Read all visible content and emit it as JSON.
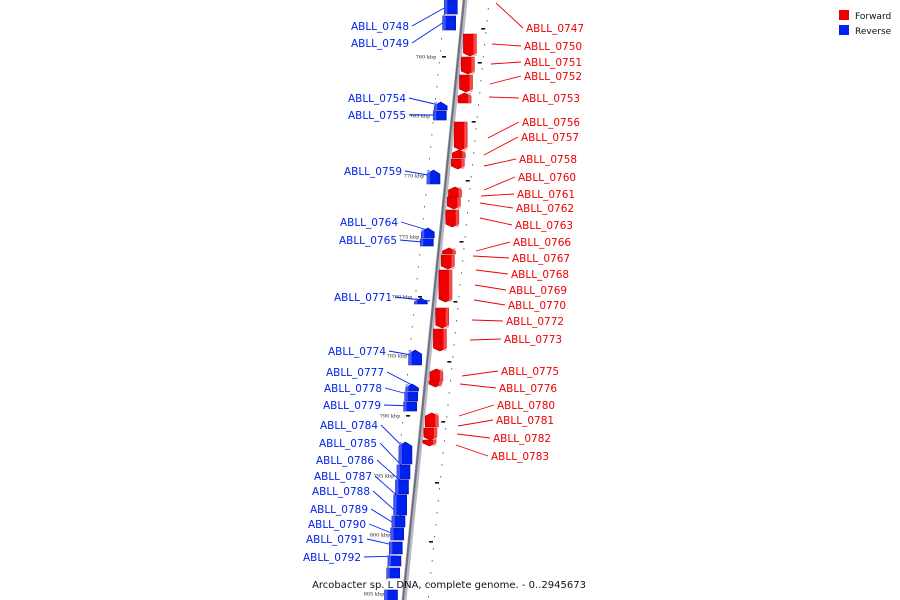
{
  "caption": "Arcobacter sp. L DNA, complete genome. - 0..2945673",
  "legend": [
    {
      "label": "Forward",
      "color": "#ee0000"
    },
    {
      "label": "Reverse",
      "color": "#0022ee"
    }
  ],
  "tick_labels": [
    "760 kbp",
    "765 kbp",
    "770 kbp",
    "775 kbp",
    "780 kbp",
    "785 kbp",
    "790 kbp",
    "795 kbp",
    "800 kbp",
    "805 kbp"
  ],
  "forward_genes": [
    "ABLL_0747",
    "ABLL_0750",
    "ABLL_0751",
    "ABLL_0752",
    "ABLL_0753",
    "ABLL_0756",
    "ABLL_0757",
    "ABLL_0758",
    "ABLL_0760",
    "ABLL_0761",
    "ABLL_0762",
    "ABLL_0763",
    "ABLL_0766",
    "ABLL_0767",
    "ABLL_0768",
    "ABLL_0769",
    "ABLL_0770",
    "ABLL_0772",
    "ABLL_0773",
    "ABLL_0775",
    "ABLL_0776",
    "ABLL_0780",
    "ABLL_0781",
    "ABLL_0782",
    "ABLL_0783"
  ],
  "reverse_genes": [
    "ABLL_0748",
    "ABLL_0749",
    "ABLL_0754",
    "ABLL_0755",
    "ABLL_0759",
    "ABLL_0764",
    "ABLL_0765",
    "ABLL_0771",
    "ABLL_0774",
    "ABLL_0777",
    "ABLL_0778",
    "ABLL_0779",
    "ABLL_0784",
    "ABLL_0785",
    "ABLL_0786",
    "ABLL_0787",
    "ABLL_0788",
    "ABLL_0789",
    "ABLL_0790",
    "ABLL_0791",
    "ABLL_0792"
  ]
}
